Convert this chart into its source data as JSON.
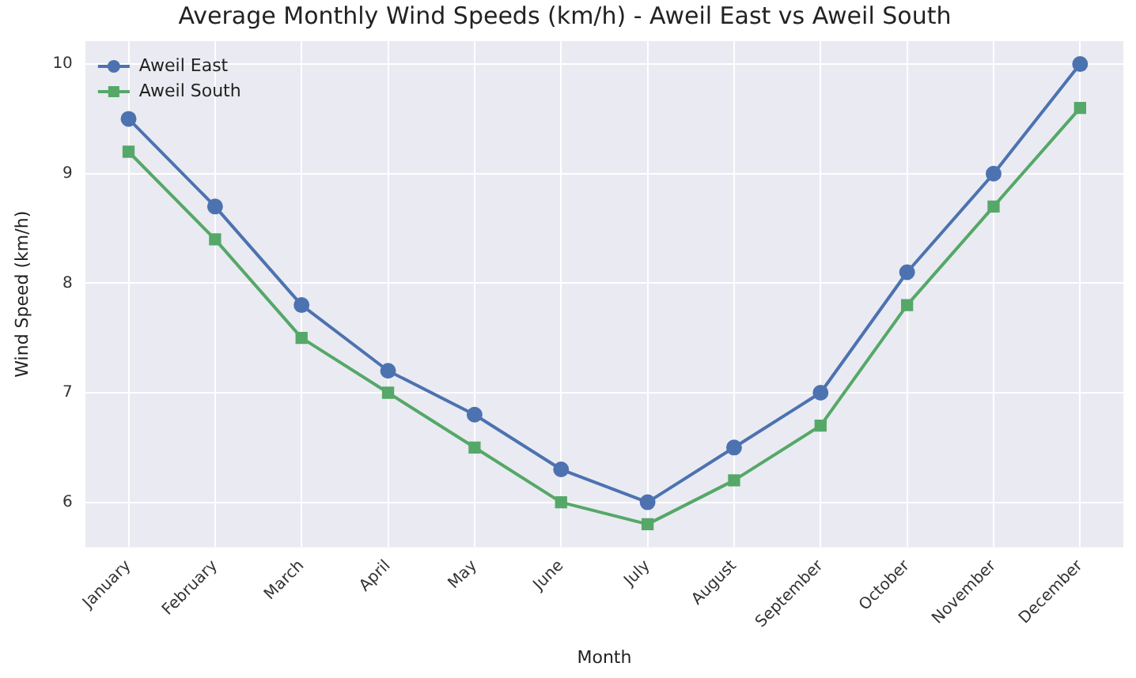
{
  "chart_data": {
    "type": "line",
    "title": "Average Monthly Wind Speeds (km/h) - Aweil East vs Aweil South",
    "xlabel": "Month",
    "ylabel": "Wind Speed (km/h)",
    "categories": [
      "January",
      "February",
      "March",
      "April",
      "May",
      "June",
      "July",
      "August",
      "September",
      "October",
      "November",
      "December"
    ],
    "series": [
      {
        "name": "Aweil East",
        "color": "#4c72b0",
        "marker": "circle",
        "values": [
          9.5,
          8.7,
          7.8,
          7.2,
          6.8,
          6.3,
          6.0,
          6.5,
          7.0,
          8.1,
          9.0,
          10.0
        ]
      },
      {
        "name": "Aweil South",
        "color": "#55a868",
        "marker": "square",
        "values": [
          9.2,
          8.4,
          7.5,
          7.0,
          6.5,
          6.0,
          5.8,
          6.2,
          6.7,
          7.8,
          8.7,
          9.6
        ]
      }
    ],
    "ylim": [
      5.59,
      10.21
    ],
    "yticks": [
      6,
      7,
      8,
      9,
      10
    ],
    "grid": true,
    "legend": "top left",
    "line_style": "solid"
  }
}
